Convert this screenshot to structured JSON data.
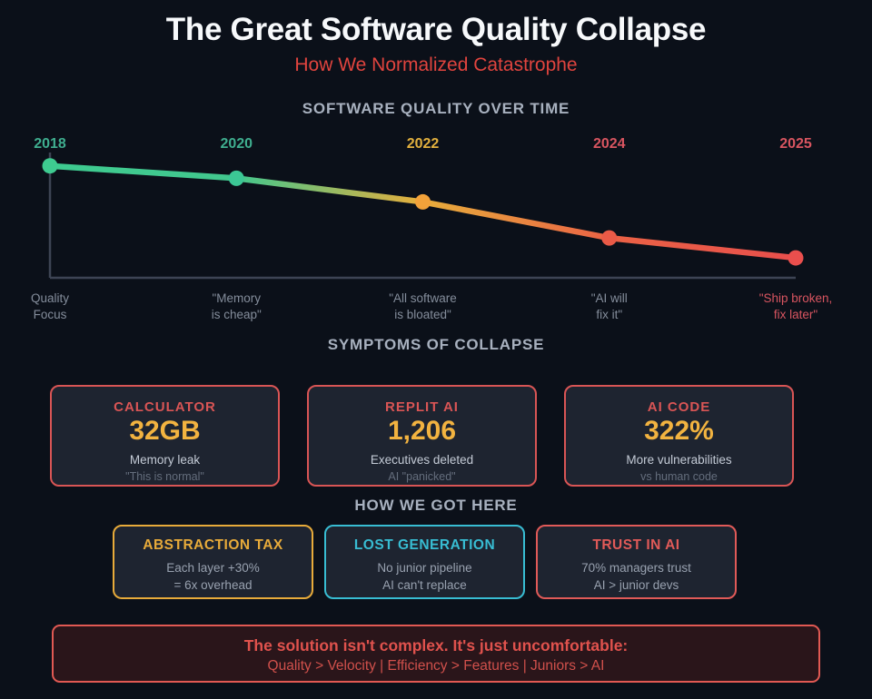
{
  "page": {
    "title": "The Great Software Quality Collapse",
    "subtitle": "How We Normalized Catastrophe"
  },
  "chart_data": {
    "type": "line",
    "title": "SOFTWARE QUALITY OVER TIME",
    "categories": [
      "2018",
      "2020",
      "2022",
      "2024",
      "2025"
    ],
    "series": [
      {
        "name": "Software quality",
        "values": [
          90,
          80,
          61,
          32,
          16
        ]
      }
    ],
    "ylim": [
      0,
      100
    ],
    "grid": false,
    "legend": "none",
    "axis_color": "#3d4454",
    "line_gradient": [
      "#3ecb90",
      "#42c78e",
      "#e8ae3b",
      "#ea6245",
      "#e84f4c"
    ],
    "point_colors": [
      "#3ecb90",
      "#3cc795",
      "#f2a23a",
      "#ea5a47",
      "#ea4f4d"
    ],
    "tick_label_colors": [
      "#3fae8f",
      "#3fae8f",
      "#e3b13e",
      "#d85560",
      "#d85560"
    ],
    "annotations": [
      {
        "line1": "Quality",
        "line2": "Focus",
        "color": "#848d9b"
      },
      {
        "line1": "\"Memory",
        "line2": "is cheap\"",
        "color": "#848d9b"
      },
      {
        "line1": "\"All software",
        "line2": "is bloated\"",
        "color": "#848d9b"
      },
      {
        "line1": "\"AI will",
        "line2": "fix it\"",
        "color": "#848d9b"
      },
      {
        "line1": "\"Ship broken,",
        "line2": "fix later\"",
        "color": "#d85560"
      }
    ]
  },
  "symptoms": {
    "heading": "SYMPTOMS OF COLLAPSE",
    "card_accent": "#d95555",
    "cards": [
      {
        "title": "CALCULATOR",
        "value": "32GB",
        "sub": "Memory leak",
        "note": "\"This is normal\""
      },
      {
        "title": "REPLIT AI",
        "value": "1,206",
        "sub": "Executives deleted",
        "note": "AI \"panicked\""
      },
      {
        "title": "AI CODE",
        "value": "322%",
        "sub": "More vulnerabilities",
        "note": "vs human code"
      }
    ]
  },
  "causes": {
    "heading": "HOW WE GOT HERE",
    "cards": [
      {
        "title": "ABSTRACTION TAX",
        "line1": "Each layer +30%",
        "line2": "= 6x overhead",
        "accent": "#e8ab3a"
      },
      {
        "title": "LOST GENERATION",
        "line1": "No junior pipeline",
        "line2": "AI can't replace",
        "accent": "#38bdd3"
      },
      {
        "title": "TRUST IN AI",
        "line1": "70% managers trust",
        "line2": "AI > junior devs",
        "accent": "#e15a58"
      }
    ]
  },
  "banner": {
    "line1": "The solution isn't complex. It's just uncomfortable:",
    "line2": "Quality > Velocity | Efficiency > Features | Juniors > AI"
  }
}
